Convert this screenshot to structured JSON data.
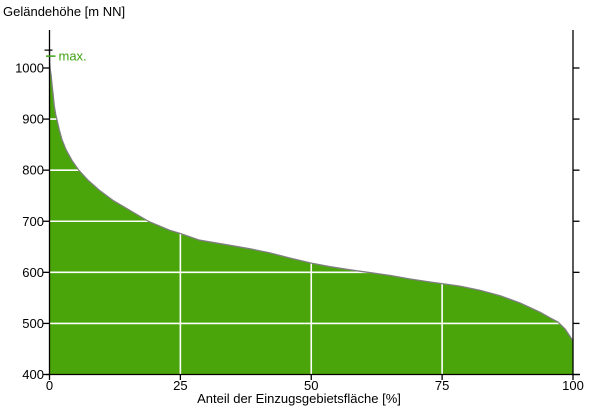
{
  "chart": {
    "y_axis_title": "Geländehöhe [m NN]",
    "x_axis_title": "Anteil der Einzugsgebietsfläche [%]",
    "max_label": "max."
  },
  "chart_data": {
    "type": "area",
    "title": "",
    "xlabel": "Anteil der Einzugsgebietsfläche [%]",
    "ylabel": "Geländehöhe [m NN]",
    "xlim": [
      0,
      100
    ],
    "ylim_drawn": [
      400,
      1075
    ],
    "x_ticks": [
      0,
      25,
      50,
      75,
      100
    ],
    "y_ticks": [
      400,
      500,
      600,
      700,
      800,
      900,
      1000
    ],
    "grid": "white lines over fill only",
    "legend": "none",
    "annotations": [
      {
        "label": "max.",
        "x": 0,
        "elevation": 1035
      }
    ],
    "x": [
      0,
      0.05,
      0.15,
      0.3,
      0.5,
      0.7,
      0.9,
      1.2,
      1.4,
      1.9,
      2.4,
      3.2,
      4.3,
      5.6,
      7.4,
      9.5,
      12.1,
      15.4,
      18.9,
      23,
      25,
      28.7,
      34.5,
      38.3,
      42.1,
      45.9,
      50,
      53.6,
      57.4,
      60.8,
      65,
      68.9,
      72.7,
      75,
      78.4,
      82.2,
      86.1,
      89.9,
      93.7,
      95.6,
      97.1,
      98.5,
      99.4,
      100
    ],
    "y": [
      1035,
      1010,
      996,
      986,
      966,
      947,
      927,
      908,
      900,
      878,
      859,
      839,
      819,
      800,
      780,
      761,
      741,
      721,
      700,
      682,
      676,
      663,
      653,
      646,
      638,
      628,
      618,
      611,
      605,
      600,
      594,
      587,
      581,
      578,
      573,
      565,
      554,
      540,
      522,
      511,
      503,
      489,
      475,
      466
    ],
    "colors": {
      "fill": "#4aa50a",
      "outline": "#7f7f7f",
      "grid": "#ffffff",
      "axis": "#000000",
      "annotation": "#3fa313",
      "background": "#ffffff"
    }
  }
}
